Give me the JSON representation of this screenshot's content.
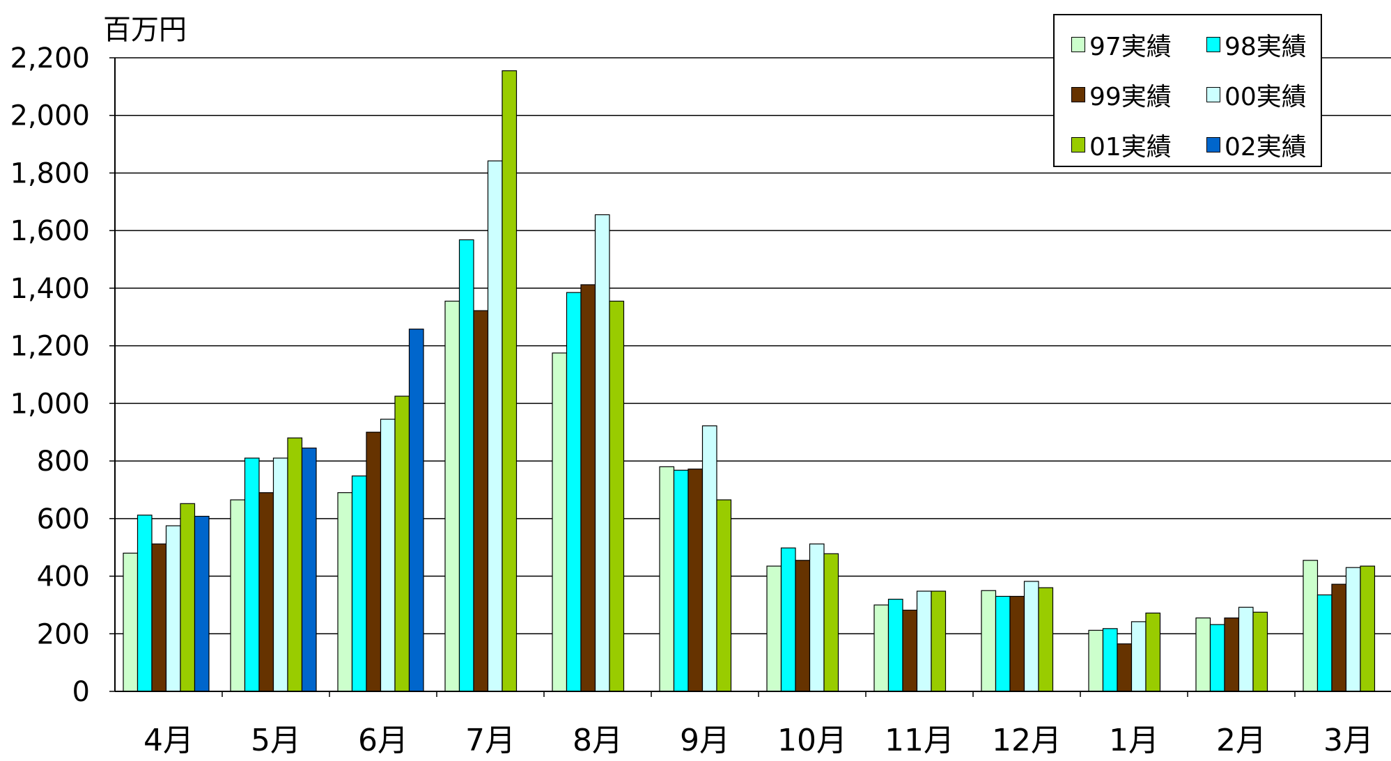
{
  "unit_label": "百万円",
  "colors": {
    "97実績": "#ccffcc",
    "98実績": "#00ffff",
    "99実績": "#663300",
    "00実績": "#ccffff",
    "01実績": "#99cc00",
    "02実績": "#0066cc"
  },
  "chart_data": {
    "type": "bar",
    "title": "",
    "xlabel": "",
    "ylabel": "百万円",
    "ylim": [
      0,
      2200
    ],
    "yticks": [
      0,
      200,
      400,
      600,
      800,
      1000,
      1200,
      1400,
      1600,
      1800,
      2000,
      2200
    ],
    "ytick_labels": [
      "0",
      "200",
      "400",
      "600",
      "800",
      "1,000",
      "1,200",
      "1,400",
      "1,600",
      "1,800",
      "2,000",
      "2,200"
    ],
    "grid": true,
    "legend_position": "top-right",
    "categories": [
      "4月",
      "5月",
      "6月",
      "7月",
      "8月",
      "9月",
      "10月",
      "11月",
      "12月",
      "1月",
      "2月",
      "3月"
    ],
    "series": [
      {
        "name": "97実績",
        "values": [
          480,
          665,
          690,
          1355,
          1175,
          780,
          435,
          300,
          350,
          212,
          255,
          455
        ]
      },
      {
        "name": "98実績",
        "values": [
          612,
          810,
          748,
          1568,
          1385,
          768,
          498,
          320,
          330,
          218,
          232,
          335
        ]
      },
      {
        "name": "99実績",
        "values": [
          512,
          690,
          900,
          1322,
          1412,
          772,
          455,
          282,
          330,
          165,
          255,
          372
        ]
      },
      {
        "name": "00実績",
        "values": [
          575,
          810,
          945,
          1842,
          1655,
          922,
          512,
          348,
          382,
          242,
          292,
          430
        ]
      },
      {
        "name": "01実績",
        "values": [
          652,
          880,
          1025,
          2155,
          1355,
          665,
          478,
          348,
          360,
          272,
          275,
          435
        ]
      },
      {
        "name": "02実績",
        "values": [
          608,
          845,
          1258,
          null,
          null,
          null,
          null,
          null,
          null,
          null,
          null,
          null
        ]
      }
    ]
  }
}
